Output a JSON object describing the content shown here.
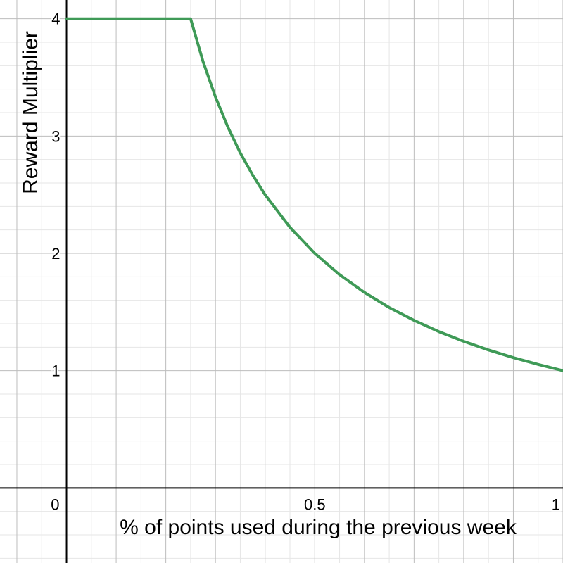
{
  "chart_data": {
    "type": "line",
    "title": "",
    "xlabel": "% of points used during the previous week",
    "ylabel": "Reward Multiplier",
    "xlim": [
      -0.134,
      1.0
    ],
    "ylim": [
      -0.64,
      4.16
    ],
    "grid": true,
    "x_ticks": [
      {
        "value": 0,
        "label": "0"
      },
      {
        "value": 0.5,
        "label": "0.5"
      },
      {
        "value": 1,
        "label": "1"
      }
    ],
    "y_ticks": [
      {
        "value": 1,
        "label": "1"
      },
      {
        "value": 2,
        "label": "2"
      },
      {
        "value": 3,
        "label": "3"
      },
      {
        "value": 4,
        "label": "4"
      }
    ],
    "series": [
      {
        "color": "#3f9a57",
        "x": [
          0,
          0.25,
          0.275,
          0.3,
          0.325,
          0.35,
          0.375,
          0.4,
          0.45,
          0.5,
          0.55,
          0.6,
          0.65,
          0.7,
          0.75,
          0.8,
          0.85,
          0.9,
          0.95,
          1.0
        ],
        "y": [
          4,
          4,
          3.636,
          3.333,
          3.077,
          2.857,
          2.667,
          2.5,
          2.222,
          2.0,
          1.818,
          1.667,
          1.538,
          1.429,
          1.333,
          1.25,
          1.176,
          1.111,
          1.053,
          1.0
        ]
      }
    ]
  }
}
